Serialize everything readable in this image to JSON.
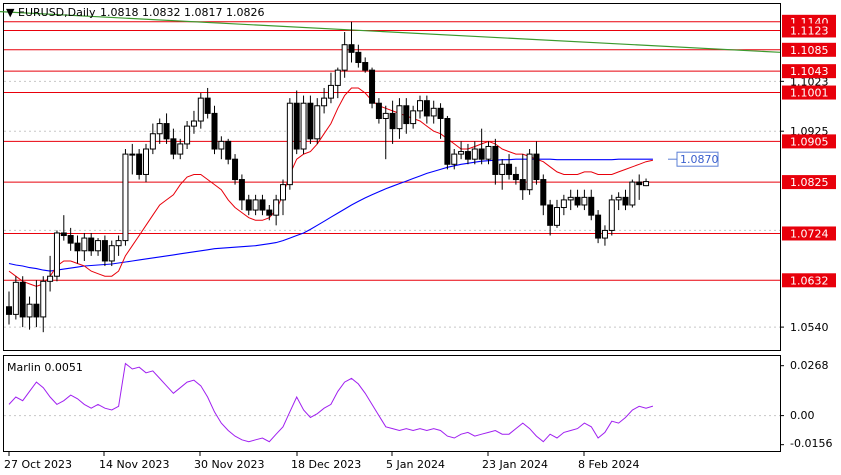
{
  "header": {
    "symbol_label": "EURUSD,Daily",
    "ohlc_label": "1.0818 1.0832 1.0817 1.0826"
  },
  "colors": {
    "frame": "#000000",
    "level_line": "#e8000b",
    "level_label_bg": "#e8000b",
    "level_label_text": "#ffffff",
    "fast_ma": "#e8000b",
    "slow_ma": "#0000ff",
    "trendline": "#3b9a2e",
    "oscillator": "#a020f0",
    "grid": "#c8c8c8",
    "candle_up": "#ffffff",
    "candle_down": "#000000",
    "callout_border": "#5b7fd6",
    "callout_text": "#3a5fcd"
  },
  "price_axis": {
    "plain_ticks": [
      "1.1023",
      "1.0925",
      "1.0540"
    ],
    "hidden_tick": "1.0730"
  },
  "levels": [
    {
      "label": "1.1140",
      "value": 1.114
    },
    {
      "label": "1.1123",
      "value": 1.1123
    },
    {
      "label": "1.1085",
      "value": 1.1085
    },
    {
      "label": "1.1043",
      "value": 1.1043
    },
    {
      "label": "1.1001",
      "value": 1.1001
    },
    {
      "label": "1.0905",
      "value": 1.0905
    },
    {
      "label": "1.0825",
      "value": 1.0825
    },
    {
      "label": "1.0724",
      "value": 1.0724
    },
    {
      "label": "1.0632",
      "value": 1.0632
    }
  ],
  "ma_callout": {
    "label": "1.0870",
    "value": 1.087
  },
  "indicator": {
    "title": "Marlin 0.0051",
    "ticks": [
      "0.0268",
      "0.00",
      "-0.0156"
    ]
  },
  "time_axis": {
    "labels": [
      "27 Oct 2023",
      "14 Nov 2023",
      "30 Nov 2023",
      "18 Dec 2023",
      "5 Jan 2024",
      "23 Jan 2024",
      "8 Feb 2024"
    ]
  },
  "chart_data": [
    {
      "type": "candlestick",
      "title": "EURUSD,Daily",
      "ylim": [
        1.0495,
        1.1175
      ],
      "candles": [
        [
          1.058,
          1.061,
          1.0545,
          1.0565
        ],
        [
          1.0565,
          1.064,
          1.0555,
          1.0628
        ],
        [
          1.0628,
          1.064,
          1.054,
          1.056
        ],
        [
          1.056,
          1.06,
          1.0535,
          1.0585
        ],
        [
          1.0585,
          1.0632,
          1.054,
          1.056
        ],
        [
          1.056,
          1.064,
          1.053,
          1.063
        ],
        [
          1.063,
          1.068,
          1.061,
          1.064
        ],
        [
          1.064,
          1.073,
          1.063,
          1.0725
        ],
        [
          1.0725,
          1.076,
          1.071,
          1.072
        ],
        [
          1.072,
          1.0735,
          1.069,
          1.0705
        ],
        [
          1.0705,
          1.072,
          1.0665,
          1.069
        ],
        [
          1.069,
          1.0725,
          1.067,
          1.0715
        ],
        [
          1.0715,
          1.0725,
          1.068,
          1.069
        ],
        [
          1.069,
          1.0715,
          1.068,
          1.071
        ],
        [
          1.071,
          1.072,
          1.066,
          1.067
        ],
        [
          1.067,
          1.071,
          1.066,
          1.07
        ],
        [
          1.07,
          1.072,
          1.068,
          1.071
        ],
        [
          1.071,
          1.089,
          1.07,
          1.088
        ],
        [
          1.088,
          1.09,
          1.084,
          1.088
        ],
        [
          1.088,
          1.089,
          1.083,
          1.084
        ],
        [
          1.084,
          1.09,
          1.0825,
          1.089
        ],
        [
          1.089,
          1.094,
          1.088,
          1.092
        ],
        [
          1.092,
          1.095,
          1.09,
          1.094
        ],
        [
          1.094,
          1.096,
          1.09,
          1.091
        ],
        [
          1.091,
          1.093,
          1.087,
          1.088
        ],
        [
          1.088,
          1.091,
          1.087,
          1.09
        ],
        [
          1.09,
          1.0945,
          1.089,
          1.0935
        ],
        [
          1.0935,
          1.0965,
          1.092,
          1.0945
        ],
        [
          1.0945,
          1.1,
          1.093,
          1.099
        ],
        [
          1.099,
          1.101,
          1.095,
          1.096
        ],
        [
          1.096,
          1.0975,
          1.088,
          1.089
        ],
        [
          1.089,
          1.0915,
          1.087,
          1.0905
        ],
        [
          1.0905,
          1.091,
          1.086,
          1.087
        ],
        [
          1.087,
          1.088,
          1.082,
          1.083
        ],
        [
          1.083,
          1.084,
          1.077,
          1.079
        ],
        [
          1.079,
          1.08,
          1.076,
          1.077
        ],
        [
          1.077,
          1.08,
          1.076,
          1.079
        ],
        [
          1.079,
          1.08,
          1.076,
          1.077
        ],
        [
          1.077,
          1.078,
          1.075,
          1.076
        ],
        [
          1.076,
          1.08,
          1.074,
          1.079
        ],
        [
          1.079,
          1.083,
          1.076,
          1.082
        ],
        [
          1.082,
          1.099,
          1.081,
          1.098
        ],
        [
          1.098,
          1.1005,
          1.088,
          1.089
        ],
        [
          1.089,
          1.0995,
          1.088,
          1.098
        ],
        [
          1.098,
          1.0995,
          1.09,
          1.091
        ],
        [
          1.091,
          1.099,
          1.09,
          1.0975
        ],
        [
          1.0975,
          1.101,
          1.096,
          1.099
        ],
        [
          1.099,
          1.104,
          1.098,
          1.1015
        ],
        [
          1.1015,
          1.105,
          1.099,
          1.1045
        ],
        [
          1.1045,
          1.112,
          1.103,
          1.1095
        ],
        [
          1.1095,
          1.114,
          1.106,
          1.108
        ],
        [
          1.108,
          1.1095,
          1.105,
          1.106
        ],
        [
          1.106,
          1.107,
          1.104,
          1.1045
        ],
        [
          1.1045,
          1.105,
          1.097,
          1.098
        ],
        [
          1.098,
          1.099,
          1.094,
          1.095
        ],
        [
          1.095,
          1.0975,
          1.087,
          1.096
        ],
        [
          1.096,
          1.0985,
          1.09,
          1.093
        ],
        [
          1.093,
          1.099,
          1.091,
          1.0975
        ],
        [
          1.0975,
          1.099,
          1.092,
          1.094
        ],
        [
          1.094,
          1.0975,
          1.093,
          1.0965
        ],
        [
          1.0965,
          1.0995,
          1.095,
          1.0985
        ],
        [
          1.0985,
          1.0995,
          1.094,
          1.0955
        ],
        [
          1.0955,
          1.0985,
          1.094,
          1.097
        ],
        [
          1.097,
          1.098,
          1.091,
          1.095
        ],
        [
          1.095,
          1.0955,
          1.085,
          1.086
        ],
        [
          1.086,
          1.089,
          1.085,
          1.088
        ],
        [
          1.088,
          1.0905,
          1.087,
          1.0885
        ],
        [
          1.0885,
          1.09,
          1.086,
          1.087
        ],
        [
          1.087,
          1.0905,
          1.086,
          1.089
        ],
        [
          1.089,
          1.093,
          1.086,
          1.087
        ],
        [
          1.087,
          1.0905,
          1.086,
          1.0895
        ],
        [
          1.0895,
          1.091,
          1.082,
          1.084
        ],
        [
          1.084,
          1.087,
          1.081,
          1.086
        ],
        [
          1.086,
          1.088,
          1.083,
          1.084
        ],
        [
          1.084,
          1.0855,
          1.082,
          1.083
        ],
        [
          1.083,
          1.088,
          1.079,
          1.081
        ],
        [
          1.081,
          1.089,
          1.08,
          1.088
        ],
        [
          1.088,
          1.0905,
          1.082,
          1.083
        ],
        [
          1.083,
          1.084,
          1.076,
          1.078
        ],
        [
          1.078,
          1.079,
          1.072,
          1.074
        ],
        [
          1.074,
          1.079,
          1.0735,
          1.0775
        ],
        [
          1.0775,
          1.08,
          1.076,
          1.079
        ],
        [
          1.079,
          1.081,
          1.077,
          1.0795
        ],
        [
          1.0795,
          1.081,
          1.0775,
          1.078
        ],
        [
          1.078,
          1.081,
          1.077,
          1.0795
        ],
        [
          1.0795,
          1.081,
          1.075,
          1.076
        ],
        [
          1.076,
          1.077,
          1.0705,
          1.0715
        ],
        [
          1.0715,
          1.074,
          1.07,
          1.073
        ],
        [
          1.073,
          1.08,
          1.072,
          1.079
        ],
        [
          1.079,
          1.0805,
          1.077,
          1.0795
        ],
        [
          1.0795,
          1.081,
          1.077,
          1.078
        ],
        [
          1.078,
          1.083,
          1.0775,
          1.0825
        ],
        [
          1.0825,
          1.084,
          1.079,
          1.082
        ],
        [
          1.0818,
          1.0832,
          1.0817,
          1.0826
        ]
      ],
      "series": [
        {
          "values": [
            1.065,
            1.064,
            1.063,
            1.0625,
            1.062,
            1.0625,
            1.064,
            1.066,
            1.067,
            1.067,
            1.0665,
            1.066,
            1.065,
            1.0645,
            1.064,
            1.064,
            1.065,
            1.068,
            1.07,
            1.072,
            1.074,
            1.076,
            1.078,
            1.079,
            1.08,
            1.082,
            1.0835,
            1.084,
            1.084,
            1.083,
            1.082,
            1.081,
            1.079,
            1.0775,
            1.0765,
            1.0755,
            1.075,
            1.075,
            1.0755,
            1.077,
            1.08,
            1.084,
            1.087,
            1.088,
            1.0885,
            1.09,
            1.092,
            1.094,
            1.097,
            1.0995,
            1.101,
            1.101,
            1.1,
            1.0985,
            1.0975,
            1.097,
            1.0965,
            1.096,
            1.0955,
            1.095,
            1.0945,
            1.0935,
            1.0925,
            1.092,
            1.091,
            1.09,
            1.089,
            1.089,
            1.0895,
            1.09,
            1.0905,
            1.09,
            1.089,
            1.0885,
            1.088,
            1.088,
            1.0875,
            1.087,
            1.0865,
            1.0855,
            1.0845,
            1.084,
            1.084,
            1.084,
            1.0845,
            1.0845,
            1.084,
            1.084,
            1.084,
            1.0845,
            1.085,
            1.0855,
            1.086,
            1.0865,
            1.0868
          ]
        },
        {
          "values": [
            1.0665,
            1.0662,
            1.066,
            1.0657,
            1.0655,
            1.0652,
            1.065,
            1.0652,
            1.0654,
            1.0656,
            1.0658,
            1.066,
            1.0661,
            1.0662,
            1.0663,
            1.0664,
            1.0666,
            1.0668,
            1.067,
            1.0672,
            1.0674,
            1.0676,
            1.0678,
            1.068,
            1.0682,
            1.0684,
            1.0686,
            1.0688,
            1.069,
            1.0692,
            1.0694,
            1.0695,
            1.0696,
            1.0697,
            1.0698,
            1.0699,
            1.07,
            1.0702,
            1.0704,
            1.0706,
            1.071,
            1.0715,
            1.072,
            1.0725,
            1.0732,
            1.074,
            1.0748,
            1.0756,
            1.0764,
            1.0772,
            1.078,
            1.0787,
            1.0794,
            1.08,
            1.0806,
            1.0812,
            1.0817,
            1.0822,
            1.0827,
            1.0832,
            1.0837,
            1.0842,
            1.0846,
            1.085,
            1.0854,
            1.0857,
            1.086,
            1.0862,
            1.0864,
            1.0866,
            1.0867,
            1.0868,
            1.0869,
            1.0869,
            1.087,
            1.087,
            1.087,
            1.087,
            1.087,
            1.087,
            1.0869,
            1.0869,
            1.0869,
            1.0869,
            1.0869,
            1.0869,
            1.0869,
            1.0869,
            1.0869,
            1.087,
            1.087,
            1.087,
            1.087,
            1.087,
            1.087
          ]
        }
      ],
      "trendline": {
        "from": 1.116,
        "to": 1.108
      }
    },
    {
      "type": "line",
      "title": "Marlin 0.0051",
      "ylim": [
        -0.019,
        0.032
      ],
      "values": [
        0.006,
        0.01,
        0.008,
        0.013,
        0.018,
        0.015,
        0.01,
        0.006,
        0.008,
        0.011,
        0.009,
        0.006,
        0.004,
        0.006,
        0.004,
        0.003,
        0.005,
        0.028,
        0.025,
        0.026,
        0.023,
        0.024,
        0.02,
        0.016,
        0.012,
        0.015,
        0.018,
        0.019,
        0.016,
        0.01,
        0.002,
        -0.004,
        -0.008,
        -0.011,
        -0.013,
        -0.014,
        -0.013,
        -0.012,
        -0.014,
        -0.01,
        -0.006,
        0.002,
        0.01,
        0.003,
        -0.001,
        0.001,
        0.004,
        0.006,
        0.013,
        0.018,
        0.02,
        0.017,
        0.012,
        0.006,
        0.0,
        -0.006,
        -0.007,
        -0.008,
        -0.007,
        -0.008,
        -0.007,
        -0.008,
        -0.007,
        -0.008,
        -0.011,
        -0.012,
        -0.01,
        -0.009,
        -0.011,
        -0.01,
        -0.009,
        -0.008,
        -0.01,
        -0.01,
        -0.007,
        -0.004,
        -0.007,
        -0.011,
        -0.014,
        -0.01,
        -0.012,
        -0.009,
        -0.008,
        -0.007,
        -0.004,
        -0.006,
        -0.012,
        -0.009,
        -0.003,
        -0.004,
        -0.001,
        0.003,
        0.005,
        0.004,
        0.0051
      ]
    }
  ]
}
